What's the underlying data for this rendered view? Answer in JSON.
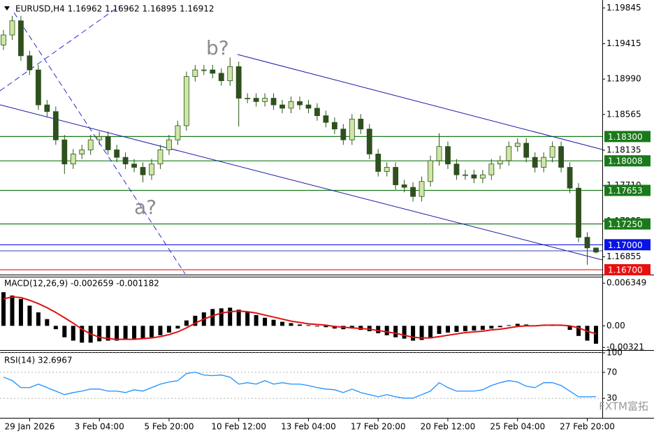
{
  "chart_data": [
    {
      "type": "candlestick",
      "title": "EURUSD,H4  1.16962 1.16962 1.16895 1.16912",
      "annotations": [
        "b?",
        "a?"
      ],
      "watermark": "FXTM富拓",
      "categories": [
        null,
        null,
        null,
        "29 Jan 2026",
        null,
        null,
        null,
        null,
        null,
        null,
        null,
        "3 Feb 04:00",
        null,
        null,
        null,
        null,
        null,
        null,
        null,
        "5 Feb 20:00",
        null,
        null,
        null,
        null,
        null,
        null,
        null,
        "10 Feb 12:00",
        null,
        null,
        null,
        null,
        null,
        null,
        null,
        "13 Feb 04:00",
        null,
        null,
        null,
        null,
        null,
        null,
        null,
        "17 Feb 20:00",
        null,
        null,
        null,
        null,
        null,
        null,
        null,
        "20 Feb 12:00",
        null,
        null,
        null,
        null,
        null,
        null,
        null,
        "25 Feb 04:00",
        null,
        null,
        null,
        null,
        null,
        null,
        null,
        "27 Feb 20:00",
        null
      ],
      "open": [
        1.194,
        1.1952,
        1.1969,
        1.1927,
        1.191,
        1.1868,
        1.186,
        1.1826,
        1.1797,
        1.1809,
        1.1814,
        1.1826,
        1.183,
        1.1814,
        1.1805,
        1.1797,
        1.1793,
        1.1784,
        1.1797,
        1.1814,
        1.1826,
        1.1843,
        1.1902,
        1.191,
        1.191,
        1.1906,
        1.1897,
        1.1914,
        1.1876,
        1.1876,
        1.1872,
        1.1876,
        1.1868,
        1.1864,
        1.1872,
        1.1868,
        1.1864,
        1.1855,
        1.1847,
        1.1839,
        1.1826,
        1.1851,
        1.1839,
        1.1809,
        1.1788,
        1.1793,
        1.1772,
        1.1769,
        1.1758,
        1.1776,
        1.1801,
        1.1818,
        1.1797,
        1.1784,
        1.1784,
        1.178,
        1.1784,
        1.1797,
        1.1801,
        1.1818,
        1.1822,
        1.1805,
        1.1793,
        1.1805,
        1.1818,
        1.1793,
        1.1768,
        1.1709,
        1.16962
      ],
      "high": [
        1.1958,
        1.1975,
        1.1975,
        1.1933,
        1.1916,
        1.1874,
        1.1866,
        1.1832,
        1.1815,
        1.182,
        1.1832,
        1.1836,
        1.1836,
        1.182,
        1.1811,
        1.1803,
        1.1799,
        1.1803,
        1.182,
        1.1832,
        1.1849,
        1.1908,
        1.1916,
        1.1916,
        1.1916,
        1.1912,
        1.1925,
        1.192,
        1.1882,
        1.1882,
        1.1882,
        1.1882,
        1.1874,
        1.1878,
        1.1878,
        1.1874,
        1.187,
        1.1861,
        1.1853,
        1.1845,
        1.1857,
        1.1857,
        1.1845,
        1.1815,
        1.1799,
        1.1799,
        1.1778,
        1.1775,
        1.1782,
        1.1807,
        1.1834,
        1.1824,
        1.1803,
        1.179,
        1.179,
        1.179,
        1.1803,
        1.1807,
        1.1824,
        1.1828,
        1.1828,
        1.1811,
        1.1811,
        1.1824,
        1.1824,
        1.1799,
        1.1774,
        1.1715,
        1.16962
      ],
      "low": [
        1.1934,
        1.1946,
        1.1921,
        1.1904,
        1.1862,
        1.1854,
        1.182,
        1.1785,
        1.1791,
        1.1803,
        1.1808,
        1.182,
        1.1808,
        1.1799,
        1.1791,
        1.1787,
        1.1775,
        1.1778,
        1.1791,
        1.1808,
        1.182,
        1.1837,
        1.1896,
        1.1904,
        1.19,
        1.1891,
        1.1891,
        1.1842,
        1.187,
        1.1866,
        1.1866,
        1.1862,
        1.1858,
        1.1858,
        1.1862,
        1.1858,
        1.1849,
        1.1841,
        1.1833,
        1.182,
        1.182,
        1.1833,
        1.1803,
        1.1782,
        1.1782,
        1.1766,
        1.1763,
        1.1752,
        1.1752,
        1.177,
        1.1795,
        1.1791,
        1.1778,
        1.1778,
        1.1774,
        1.1774,
        1.1778,
        1.1791,
        1.1795,
        1.1812,
        1.1799,
        1.1787,
        1.1787,
        1.1799,
        1.1787,
        1.1762,
        1.1703,
        1.1676,
        1.16895
      ],
      "close": [
        1.1952,
        1.1969,
        1.1927,
        1.191,
        1.1868,
        1.186,
        1.1826,
        1.1797,
        1.1809,
        1.1814,
        1.1826,
        1.183,
        1.1814,
        1.1805,
        1.1797,
        1.1793,
        1.1784,
        1.1797,
        1.1814,
        1.1826,
        1.1843,
        1.1902,
        1.191,
        1.191,
        1.1906,
        1.1897,
        1.1914,
        1.1876,
        1.1876,
        1.1872,
        1.1876,
        1.1868,
        1.1864,
        1.1872,
        1.1868,
        1.1864,
        1.1855,
        1.1847,
        1.1839,
        1.1826,
        1.1851,
        1.1839,
        1.1809,
        1.1788,
        1.1793,
        1.1772,
        1.1769,
        1.1758,
        1.1776,
        1.1801,
        1.1818,
        1.1797,
        1.1784,
        1.1784,
        1.178,
        1.1784,
        1.1797,
        1.1801,
        1.1818,
        1.1822,
        1.1805,
        1.1793,
        1.1805,
        1.1818,
        1.1793,
        1.1768,
        1.1709,
        1.16962,
        1.16912
      ],
      "colors": {
        "up": "#cfe6a6",
        "down": "#2f4f1f",
        "outline": "#2a5418"
      },
      "ylim": [
        1.1665,
        1.1994
      ],
      "yticks": [
        1.19845,
        1.19415,
        {
          "value": 1.1899,
          "label": "1.18990"
        },
        1.18565,
        1.18135,
        {
          "value": 1.1771,
          "label": "1.17710"
        },
        1.17285,
        1.16855
      ],
      "levels": [
        {
          "value": 1.183,
          "label": "1.18300",
          "color": "#1a7a1a"
        },
        {
          "value": 1.18008,
          "label": "1.18008",
          "color": "#1a7a1a"
        },
        {
          "value": 1.17653,
          "label": "1.17653",
          "color": "#1a7a1a"
        },
        {
          "value": 1.1725,
          "label": "1.17250",
          "color": "#1a7a1a"
        },
        {
          "value": 1.17,
          "label": "1.17000",
          "color": "#0a14e6"
        },
        {
          "value": 1.167,
          "label": "1.16700",
          "color": "#e61010"
        }
      ]
    },
    {
      "type": "bar",
      "title": "MACD(12,26,9) -0.002659 -0.001182",
      "ylim": [
        -0.0036,
        0.0072
      ],
      "yticks": [
        0.006349,
        {
          "value": 0,
          "label": "0.00"
        },
        -0.00321
      ],
      "series": [
        {
          "type": "bar",
          "color": "#000000",
          "values": [
            0.005,
            0.0045,
            0.004,
            0.003,
            0.002,
            0.001,
            -0.0005,
            -0.0017,
            -0.0022,
            -0.0025,
            -0.0025,
            -0.0023,
            -0.0022,
            -0.0022,
            -0.002,
            -0.0019,
            -0.0019,
            -0.0017,
            -0.0014,
            -0.001,
            -0.0004,
            0.0008,
            0.0015,
            0.002,
            0.0025,
            0.0026,
            0.0027,
            0.0024,
            0.002,
            0.0016,
            0.0012,
            0.0009,
            0.0006,
            0.0004,
            0.0002,
            0.0001,
            -0.0001,
            -0.0002,
            -0.0004,
            -0.0005,
            -0.0004,
            -0.0006,
            -0.0008,
            -0.0011,
            -0.0014,
            -0.0017,
            -0.0019,
            -0.0022,
            -0.0021,
            -0.0017,
            -0.0012,
            -0.001,
            -0.0009,
            -0.0008,
            -0.0007,
            -0.0006,
            -0.0004,
            -0.0002,
            0.0001,
            0.0003,
            0.0002,
            0.0,
            0.0001,
            0.0002,
            0.0001,
            -0.0006,
            -0.0015,
            -0.0022,
            -0.002659
          ]
        },
        {
          "type": "line",
          "color": "#e01010",
          "values": [
            0.004,
            0.0043,
            0.0042,
            0.0038,
            0.0033,
            0.0027,
            0.002,
            0.0012,
            0.0004,
            -0.0005,
            -0.0012,
            -0.0017,
            -0.0019,
            -0.002,
            -0.002,
            -0.002,
            -0.0019,
            -0.0018,
            -0.0016,
            -0.0013,
            -0.0009,
            -0.0003,
            0.0004,
            0.001,
            0.0015,
            0.0019,
            0.0021,
            0.0022,
            0.0021,
            0.0019,
            0.0016,
            0.0013,
            0.001,
            0.0007,
            0.0005,
            0.0003,
            0.0002,
            0.0001,
            -0.0001,
            -0.0002,
            -0.0003,
            -0.0004,
            -0.0005,
            -0.0007,
            -0.0009,
            -0.0011,
            -0.0014,
            -0.0017,
            -0.0018,
            -0.0018,
            -0.0016,
            -0.0014,
            -0.0012,
            -0.001,
            -0.0009,
            -0.0008,
            -0.0006,
            -0.0005,
            -0.0003,
            -0.0001,
            0.0,
            0.0,
            0.0001,
            0.0001,
            0.0001,
            0.0,
            -0.0003,
            -0.0008,
            -0.001182
          ]
        }
      ]
    },
    {
      "type": "line",
      "title": "RSI(14) 32.6967",
      "ylim": [
        0,
        100
      ],
      "yticks": [
        100,
        70,
        30
      ],
      "series": [
        {
          "type": "line",
          "color": "#1e90ff",
          "values": [
            62.7,
            57.3,
            46.5,
            46.5,
            51.9,
            46.5,
            41.1,
            35.7,
            38.9,
            41.1,
            44.3,
            44.3,
            41.1,
            41.1,
            38.9,
            43.2,
            41.1,
            46.5,
            51.9,
            55.1,
            57.3,
            68.1,
            70.3,
            65.9,
            64.9,
            65.9,
            62.7,
            51.9,
            54.1,
            51.9,
            57.3,
            51.9,
            54.1,
            51.9,
            51.9,
            49.7,
            46.5,
            44.3,
            43.2,
            38.9,
            44.3,
            38.9,
            35.7,
            32.4,
            35.7,
            32.4,
            30.3,
            30.3,
            35.7,
            41.1,
            54.1,
            46.5,
            41.1,
            41.1,
            41.1,
            43.2,
            49.7,
            54.1,
            57.3,
            55.1,
            48.6,
            46.5,
            54.1,
            54.1,
            49.7,
            41.1,
            32.4,
            32.4,
            32.6967
          ]
        }
      ]
    }
  ]
}
